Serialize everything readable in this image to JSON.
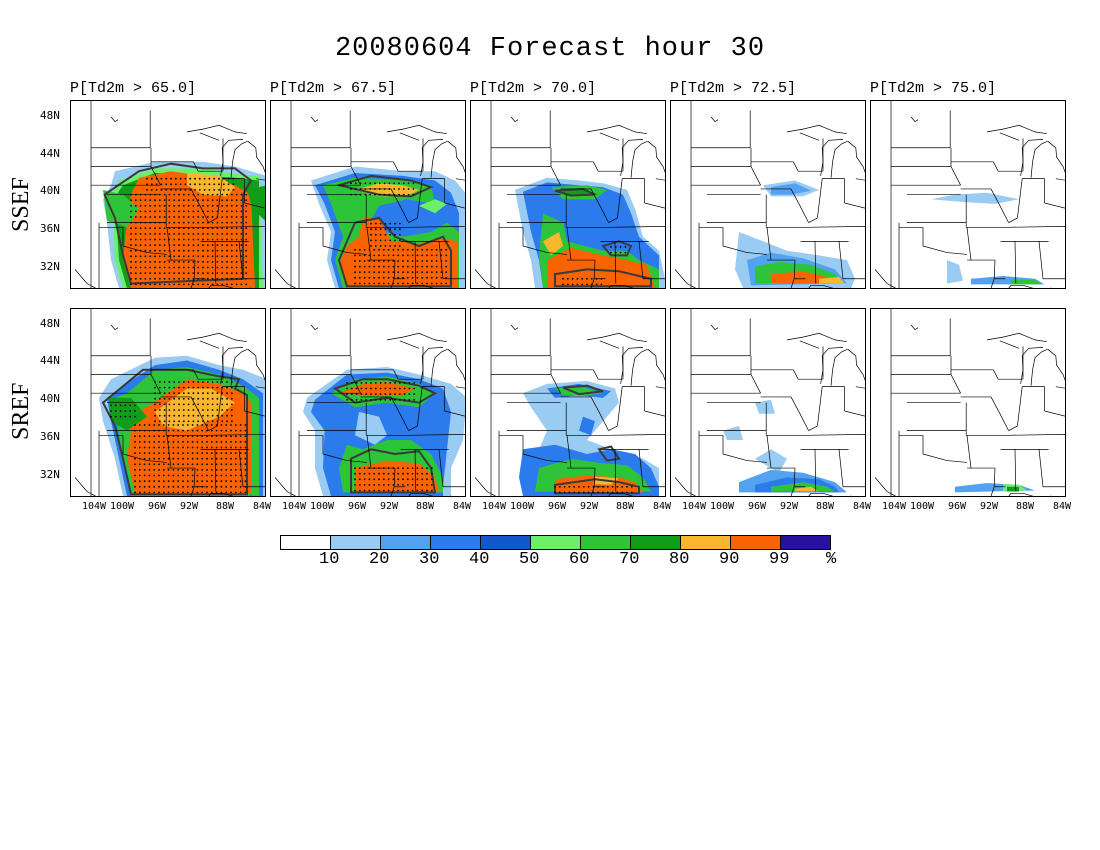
{
  "title": "20080604 Forecast hour 30",
  "column_titles": [
    "P[Td2m > 65.0]",
    "P[Td2m > 67.5]",
    "P[Td2m > 70.0]",
    "P[Td2m > 72.5]",
    "P[Td2m > 75.0]"
  ],
  "row_labels": [
    "SSEF",
    "SREF"
  ],
  "lat_labels": [
    "48N",
    "44N",
    "40N",
    "36N",
    "32N"
  ],
  "lon_labels": [
    "104W",
    "100W",
    "96W",
    "92W",
    "88W",
    "84W"
  ],
  "colorbar": {
    "labels": [
      "10",
      "20",
      "30",
      "40",
      "50",
      "60",
      "70",
      "80",
      "90",
      "99",
      "%"
    ],
    "colors": [
      "#ffffff",
      "#9acbf3",
      "#53a2f0",
      "#2b7bec",
      "#1258cc",
      "#6cf06c",
      "#2ec43a",
      "#0f9d1a",
      "#f9b62f",
      "#fa6304",
      "#2810a0"
    ]
  },
  "colors": {
    "c1": "#9acbf3",
    "c2": "#53a2f0",
    "c3": "#2b7bec",
    "c4": "#1258cc",
    "c5": "#6cf06c",
    "c6": "#2ec43a",
    "c7": "#0f9d1a",
    "c8": "#f9b62f",
    "c9": "#fa6304",
    "contour": "#3a3a3a"
  }
}
